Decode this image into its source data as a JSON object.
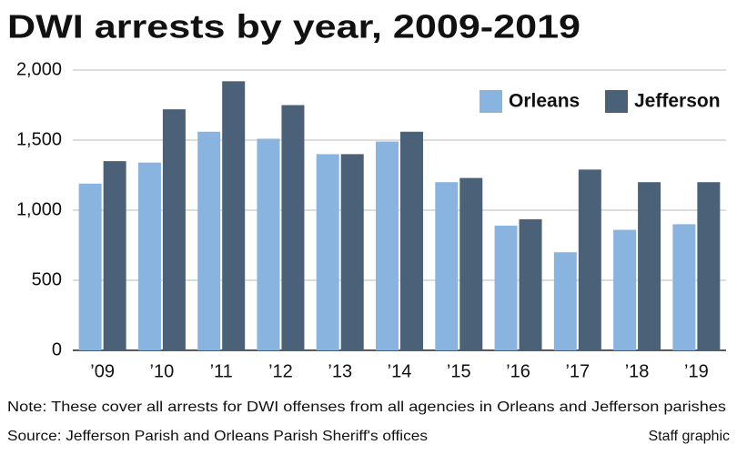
{
  "chart_data": {
    "type": "bar",
    "title": "DWI arrests by year, 2009-2019",
    "note": "Note: These cover all arrests for DWI offenses from all agencies in Orleans and Jefferson parishes",
    "source": "Source: Jefferson Parish and Orleans Parish Sheriff's offices",
    "credit": "Staff graphic",
    "categories": [
      "’09",
      "’10",
      "’11",
      "’12",
      "’13",
      "’14",
      "’15",
      "’16",
      "’17",
      "’18",
      "’19"
    ],
    "series": [
      {
        "name": "Orleans",
        "color": "#8ab4e0",
        "values": [
          1190,
          1340,
          1560,
          1510,
          1400,
          1490,
          1200,
          890,
          700,
          860,
          900
        ]
      },
      {
        "name": "Jefferson",
        "color": "#4a6178",
        "values": [
          1350,
          1720,
          1920,
          1750,
          1400,
          1560,
          1230,
          935,
          1290,
          1200,
          1200
        ]
      }
    ],
    "ylim": [
      0,
      2000
    ],
    "yticks": [
      0,
      500,
      {
        "value": 1000,
        "label": "1,000"
      },
      {
        "value": 1500,
        "label": "1,500"
      },
      {
        "value": 2000,
        "label": "2,000"
      }
    ],
    "grid": true,
    "legend": "top-right"
  }
}
